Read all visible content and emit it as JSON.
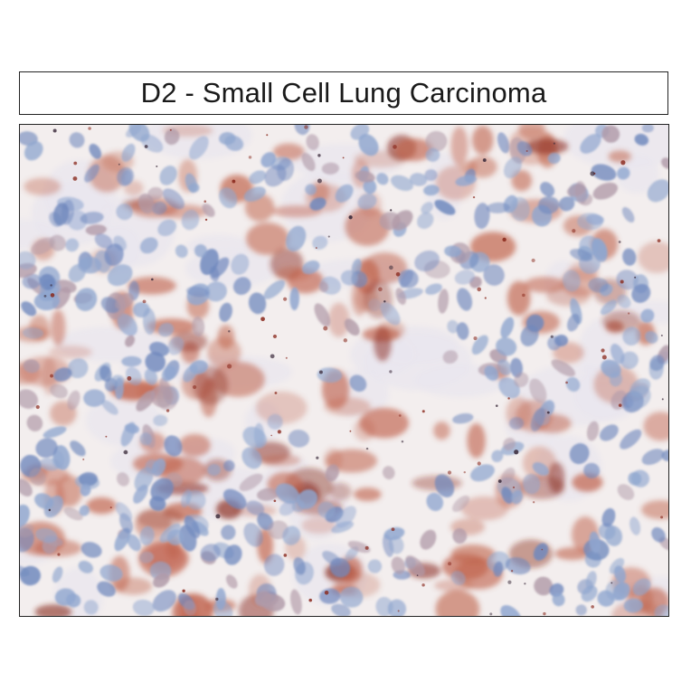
{
  "panel": {
    "title": "D2 - Small Cell Lung Carcinoma"
  },
  "image": {
    "description_icon": "ihc-micrograph-icon",
    "colors": {
      "background": "#f3eeee",
      "hematoxylin_nuclei": "#8fa6cf",
      "nuclei_dark": "#6f88bd",
      "dab_stain": "#c0634c",
      "dab_dark": "#8a2a1e",
      "stroma": "#e8e6ee"
    }
  }
}
